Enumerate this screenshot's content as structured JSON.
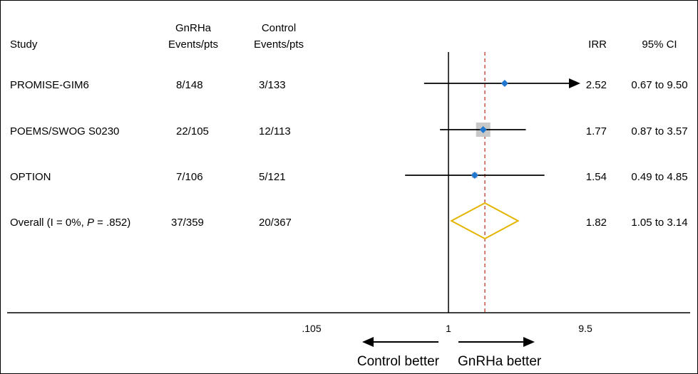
{
  "header": {
    "study": "Study",
    "gnrha_line1": "GnRHa",
    "gnrha_line2": "Events/pts",
    "control_line1": "Control",
    "control_line2": "Events/pts",
    "irr": "IRR",
    "ci": "95% CI"
  },
  "rows": [
    {
      "study": "PROMISE-GIM6",
      "gnrha": "8/148",
      "control": "3/133",
      "irr": "2.52",
      "ci": "0.67 to 9.50"
    },
    {
      "study": "POEMS/SWOG S0230",
      "gnrha": "22/105",
      "control": "12/113",
      "irr": "1.77",
      "ci": "0.87 to 3.57"
    },
    {
      "study": "OPTION",
      "gnrha": "7/106",
      "control": "5/121",
      "irr": "1.54",
      "ci": "0.49 to 4.85"
    }
  ],
  "overall": {
    "label_prefix": "Overall (I = 0%, ",
    "label_p": "P",
    "label_suffix": " = .852)",
    "gnrha": "37/359",
    "control": "20/367",
    "irr": "1.82",
    "ci": "1.05 to 3.14"
  },
  "axis": {
    "ticks": [
      ".105",
      "1",
      "9.5"
    ],
    "left_direction": "Control better",
    "right_direction": "GnRHa better"
  },
  "chart_data": {
    "type": "forest",
    "scale": "log",
    "xlim": [
      0.105,
      9.5
    ],
    "reference_line": 1,
    "overall_line": 1.82,
    "studies": [
      {
        "name": "PROMISE-GIM6",
        "estimate": 2.52,
        "lower": 0.67,
        "upper": 9.5,
        "arrow_right": true
      },
      {
        "name": "POEMS/SWOG S0230",
        "estimate": 1.77,
        "lower": 0.87,
        "upper": 3.57,
        "arrow_right": false
      },
      {
        "name": "OPTION",
        "estimate": 1.54,
        "lower": 0.49,
        "upper": 4.85,
        "arrow_right": false
      }
    ],
    "overall": {
      "estimate": 1.82,
      "lower": 1.05,
      "upper": 3.14
    },
    "colors": {
      "point": "#1f77d0",
      "diamond": "#e3b500",
      "dashed": "#c0392b",
      "weight_box": "#c8c8c8"
    }
  }
}
